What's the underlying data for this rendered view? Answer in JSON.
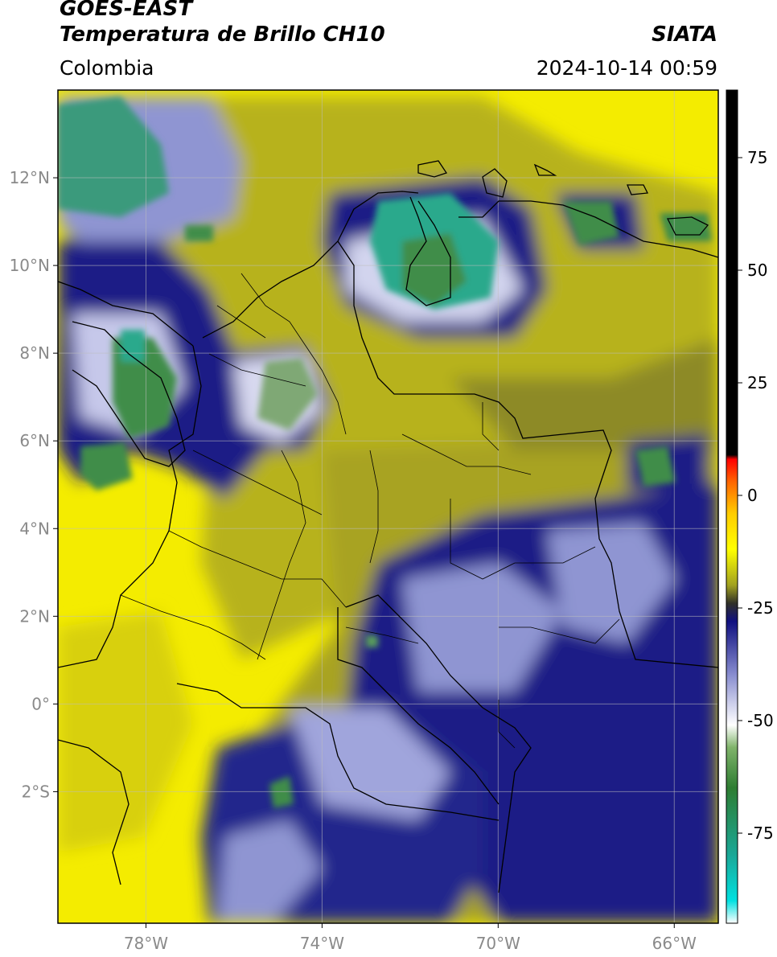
{
  "header": {
    "satellite": "GOES-EAST",
    "product": "Temperatura de Brillo CH10",
    "region": "Colombia",
    "agency": "SIATA",
    "datetime": "2024-10-14 00:59"
  },
  "map": {
    "lon_range": [
      -80,
      -65
    ],
    "lat_range": [
      -5,
      14
    ],
    "lon_ticks": [
      {
        "value": -78,
        "label": "78°W"
      },
      {
        "value": -74,
        "label": "74°W"
      },
      {
        "value": -70,
        "label": "70°W"
      },
      {
        "value": -66,
        "label": "66°W"
      }
    ],
    "lat_ticks": [
      {
        "value": 12,
        "label": "12°N"
      },
      {
        "value": 10,
        "label": "10°N"
      },
      {
        "value": 8,
        "label": "8°N"
      },
      {
        "value": 6,
        "label": "6°N"
      },
      {
        "value": 4,
        "label": "4°N"
      },
      {
        "value": 2,
        "label": "2°N"
      },
      {
        "value": 0,
        "label": "0°"
      },
      {
        "value": -2,
        "label": "2°S"
      }
    ],
    "grid": true
  },
  "colorbar": {
    "range": [
      -95,
      90
    ],
    "ticks": [
      {
        "value": 75,
        "label": "75"
      },
      {
        "value": 50,
        "label": "50"
      },
      {
        "value": 25,
        "label": "25"
      },
      {
        "value": 0,
        "label": "0"
      },
      {
        "value": -25,
        "label": "-25"
      },
      {
        "value": -50,
        "label": "-50"
      },
      {
        "value": -75,
        "label": "-75"
      }
    ],
    "stops": [
      {
        "value": -95,
        "color": "#ffffff"
      },
      {
        "value": -90,
        "color": "#00e0e0"
      },
      {
        "value": -80,
        "color": "#1aa898"
      },
      {
        "value": -65,
        "color": "#2e7d32"
      },
      {
        "value": -56,
        "color": "#7fb36a"
      },
      {
        "value": -51,
        "color": "#ffffff"
      },
      {
        "value": -40,
        "color": "#8a8fd0"
      },
      {
        "value": -28,
        "color": "#101080"
      },
      {
        "value": -24,
        "color": "#303028"
      },
      {
        "value": -20,
        "color": "#a0a020"
      },
      {
        "value": -12,
        "color": "#ffff00"
      },
      {
        "value": -4,
        "color": "#ffcc00"
      },
      {
        "value": 3,
        "color": "#ff6600"
      },
      {
        "value": 8,
        "color": "#ff0000"
      },
      {
        "value": 9,
        "color": "#000000"
      },
      {
        "value": 90,
        "color": "#000000"
      }
    ]
  },
  "colors": {
    "yellow": "#f4ec00",
    "olive": "#b7b21a",
    "dark_olive": "#8d8a25",
    "navy": "#1c1f86",
    "lilac": "#8f95d2",
    "green": "#3f8d4a",
    "teal": "#2aa98c"
  }
}
